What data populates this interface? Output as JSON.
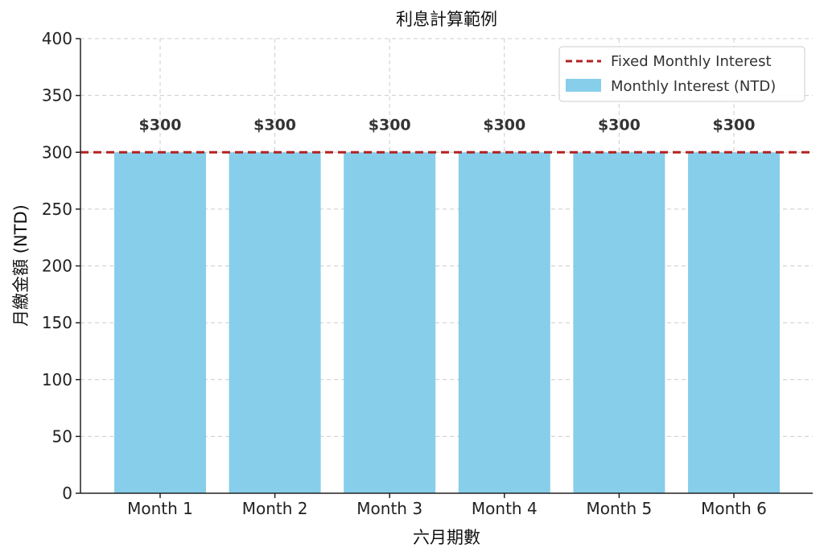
{
  "chart_data": {
    "type": "bar",
    "title": "利息計算範例",
    "xlabel": "六月期數",
    "ylabel": "月繳金額 (NTD)",
    "categories": [
      "Month 1",
      "Month 2",
      "Month 3",
      "Month 4",
      "Month 5",
      "Month 6"
    ],
    "series": [
      {
        "name": "Monthly Interest (NTD)",
        "values": [
          300,
          300,
          300,
          300,
          300,
          300
        ],
        "data_labels": [
          "$300",
          "$300",
          "$300",
          "$300",
          "$300",
          "$300"
        ],
        "color": "#87ceeb"
      }
    ],
    "reference_line": {
      "name": "Fixed Monthly Interest",
      "value": 300,
      "color": "#b22222",
      "style": "dashed"
    },
    "ylim": [
      0,
      400
    ],
    "yticks": [
      0,
      50,
      100,
      150,
      200,
      250,
      300,
      350,
      400
    ],
    "grid": true,
    "legend_position": "top-right"
  }
}
